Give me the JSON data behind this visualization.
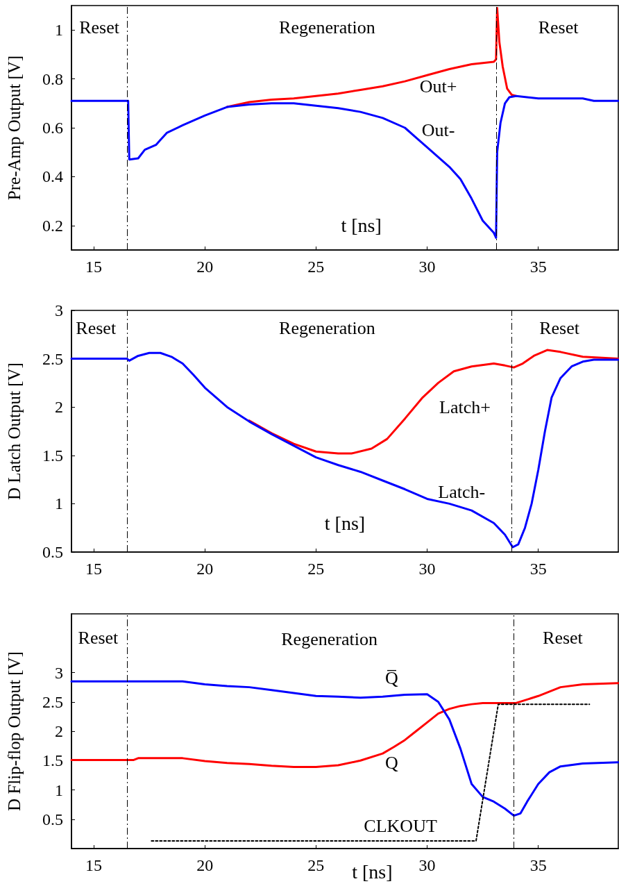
{
  "chart_data": [
    {
      "type": "line",
      "ylabel": "Pre-Amp Output [V]",
      "xlabel": "t [ns]",
      "xlim": [
        14,
        38.6
      ],
      "ylim": [
        0.1,
        1.1
      ],
      "xticks": [
        15,
        20,
        25,
        30,
        35
      ],
      "yticks": [
        0.2,
        0.4,
        0.6,
        0.8,
        1
      ],
      "grid": false,
      "marker": "none",
      "series": [
        {
          "name": "Out+",
          "color": "#ff0000",
          "x": [
            21,
            22,
            23,
            24,
            25,
            26,
            27,
            28,
            29,
            30,
            31,
            32,
            33,
            33.1,
            33.15,
            33.25,
            33.4,
            33.6,
            33.8,
            34
          ],
          "values": [
            0.685,
            0.705,
            0.715,
            0.72,
            0.73,
            0.74,
            0.755,
            0.77,
            0.79,
            0.815,
            0.84,
            0.86,
            0.87,
            0.88,
            1.09,
            0.95,
            0.85,
            0.76,
            0.735,
            0.73
          ]
        },
        {
          "name": "Out-",
          "color": "#0000ff",
          "x": [
            14,
            16.55,
            16.6,
            17,
            17.3,
            17.8,
            18,
            18.3,
            19,
            20,
            21,
            22,
            23,
            24,
            25,
            26,
            27,
            28,
            29,
            29.5,
            30,
            31,
            31.5,
            32,
            32.5,
            33,
            33.1,
            33.15,
            33.3,
            33.5,
            33.7,
            34,
            35,
            37,
            37.5,
            38.6
          ],
          "values": [
            0.71,
            0.71,
            0.47,
            0.475,
            0.51,
            0.53,
            0.55,
            0.58,
            0.61,
            0.65,
            0.685,
            0.695,
            0.7,
            0.7,
            0.69,
            0.68,
            0.665,
            0.64,
            0.6,
            0.56,
            0.52,
            0.44,
            0.39,
            0.31,
            0.22,
            0.17,
            0.15,
            0.5,
            0.62,
            0.7,
            0.725,
            0.73,
            0.72,
            0.72,
            0.71,
            0.71
          ]
        }
      ],
      "ref_lines": [
        {
          "axis": "x",
          "value": 16.5
        },
        {
          "axis": "x",
          "value": 33.1
        }
      ],
      "annotations": [
        "Reset",
        "Regeneration",
        "Reset"
      ]
    },
    {
      "type": "line",
      "ylabel": "D Latch Output [V]",
      "xlabel": "t [ns]",
      "xlim": [
        14,
        38.6
      ],
      "ylim": [
        0.5,
        3
      ],
      "xticks": [
        15,
        20,
        25,
        30,
        35
      ],
      "yticks": [
        0.5,
        1,
        1.5,
        2,
        2.5,
        3
      ],
      "grid": false,
      "marker": "none",
      "series": [
        {
          "name": "Latch+",
          "color": "#ff0000",
          "x": [
            22,
            23,
            24,
            25,
            26,
            26.6,
            27.5,
            28.2,
            29,
            29.8,
            30.5,
            31.2,
            32,
            33,
            33.5,
            33.9,
            34.3,
            34.8,
            35.4,
            36,
            37,
            38.6
          ],
          "values": [
            1.86,
            1.73,
            1.62,
            1.54,
            1.52,
            1.52,
            1.57,
            1.67,
            1.88,
            2.1,
            2.25,
            2.37,
            2.42,
            2.45,
            2.43,
            2.41,
            2.45,
            2.53,
            2.59,
            2.57,
            2.52,
            2.5
          ]
        },
        {
          "name": "Latch-",
          "color": "#0000ff",
          "x": [
            14,
            16.5,
            16.6,
            17,
            17.5,
            18,
            18.5,
            19,
            19.5,
            20,
            21,
            22,
            23,
            24,
            25,
            26,
            27,
            28,
            29,
            30,
            31,
            32,
            33,
            33.5,
            33.85,
            34.1,
            34.4,
            34.7,
            35,
            35.3,
            35.6,
            36,
            36.5,
            37,
            37.5,
            38.6
          ],
          "values": [
            2.5,
            2.5,
            2.48,
            2.53,
            2.56,
            2.56,
            2.52,
            2.45,
            2.33,
            2.2,
            2,
            1.85,
            1.72,
            1.6,
            1.48,
            1.4,
            1.33,
            1.24,
            1.15,
            1.05,
            1,
            0.93,
            0.8,
            0.68,
            0.55,
            0.58,
            0.75,
            1,
            1.35,
            1.75,
            2.1,
            2.3,
            2.42,
            2.47,
            2.49,
            2.49
          ]
        }
      ],
      "ref_lines": [
        {
          "axis": "x",
          "value": 16.5
        },
        {
          "axis": "x",
          "value": 33.8
        }
      ],
      "annotations": [
        "Reset",
        "Regeneration",
        "Reset"
      ]
    },
    {
      "type": "line",
      "ylabel": "D Flip-flop Output [V]",
      "xlabel": "t [ns]",
      "xlim": [
        14,
        38.6
      ],
      "ylim": [
        0,
        4
      ],
      "xticks": [
        15,
        20,
        25,
        30,
        35
      ],
      "yticks": [
        0.5,
        1,
        1.5,
        2,
        2.5,
        3
      ],
      "grid": false,
      "marker": "none",
      "series": [
        {
          "name": "Q",
          "color": "#ff0000",
          "x": [
            14,
            16.8,
            17,
            19,
            20,
            21,
            22,
            23,
            24,
            25,
            26,
            27,
            28,
            28.5,
            29,
            29.5,
            30,
            30.5,
            31,
            31.5,
            32,
            32.5,
            34,
            35,
            36,
            37,
            38.6
          ],
          "values": [
            1.51,
            1.51,
            1.54,
            1.54,
            1.49,
            1.46,
            1.44,
            1.41,
            1.39,
            1.39,
            1.42,
            1.5,
            1.62,
            1.73,
            1.85,
            2,
            2.15,
            2.3,
            2.38,
            2.43,
            2.46,
            2.48,
            2.48,
            2.6,
            2.75,
            2.8,
            2.82
          ]
        },
        {
          "name": "Q̅",
          "color": "#0000ff",
          "x": [
            14,
            19,
            20,
            21,
            22,
            23,
            24,
            25,
            26,
            27,
            28,
            29,
            30,
            30.5,
            31,
            31.5,
            32,
            32.5,
            33,
            33.5,
            33.9,
            34.2,
            34.5,
            35,
            35.5,
            36,
            37,
            38.6
          ],
          "values": [
            2.85,
            2.85,
            2.8,
            2.77,
            2.75,
            2.7,
            2.65,
            2.6,
            2.59,
            2.57,
            2.59,
            2.62,
            2.63,
            2.5,
            2.2,
            1.7,
            1.1,
            0.88,
            0.8,
            0.68,
            0.56,
            0.6,
            0.8,
            1.1,
            1.3,
            1.4,
            1.45,
            1.47
          ]
        },
        {
          "name": "CLKOUT",
          "color": "#000000",
          "line_style": "dotted",
          "x": [
            17.6,
            32.2,
            33.2,
            37.3
          ],
          "values": [
            0.13,
            0.13,
            2.46,
            2.46
          ]
        }
      ],
      "ref_lines": [
        {
          "axis": "x",
          "value": 16.5
        },
        {
          "axis": "x",
          "value": 33.9
        }
      ],
      "annotations": [
        "Reset",
        "Regeneration",
        "Reset"
      ]
    }
  ]
}
